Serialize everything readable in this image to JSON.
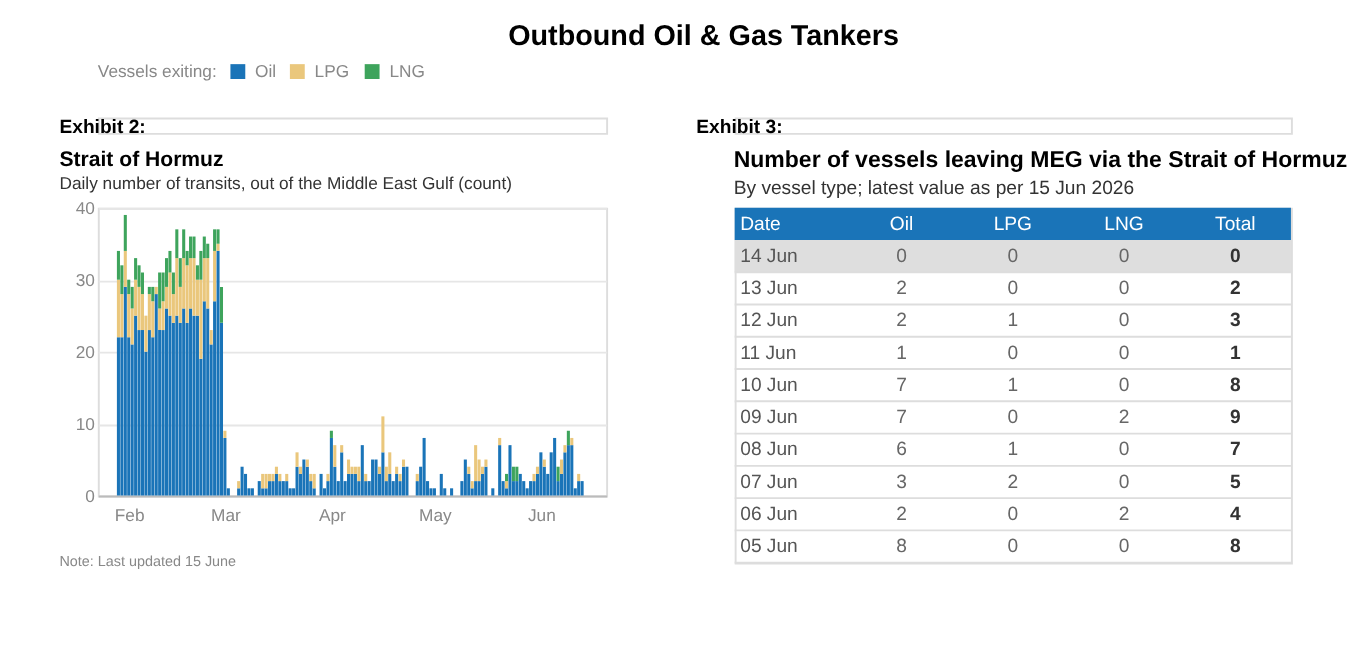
{
  "chart_data": [
    {
      "type": "bar",
      "title": "Strait of Hormuz",
      "subtitle": "Daily number of transits, out of the Middle East Gulf (count)",
      "legend_title": "Vessels exiting:",
      "legend": "top left",
      "stacked": true,
      "grid": "y",
      "annotations": [
        "Outbound Oil & Gas Tankers",
        "Exhibit 2:",
        "Note: Last updated 15 June"
      ],
      "xlim": [
        "2026-01-23",
        "2026-06-20"
      ],
      "xticks": [
        {
          "value": "2026-02-01",
          "label": "Feb"
        },
        {
          "value": "2026-03-01",
          "label": "Mar"
        },
        {
          "value": "2026-04-01",
          "label": "Apr"
        },
        {
          "value": "2026-05-01",
          "label": "May"
        },
        {
          "value": "2026-06-01",
          "label": "Jun"
        }
      ],
      "ylim": [
        0,
        40
      ],
      "yticks": [
        0,
        10,
        20,
        30,
        40
      ],
      "x": [
        "2026-01-29",
        "2026-01-30",
        "2026-01-31",
        "2026-02-01",
        "2026-02-02",
        "2026-02-03",
        "2026-02-04",
        "2026-02-05",
        "2026-02-06",
        "2026-02-07",
        "2026-02-08",
        "2026-02-09",
        "2026-02-10",
        "2026-02-11",
        "2026-02-12",
        "2026-02-13",
        "2026-02-14",
        "2026-02-15",
        "2026-02-16",
        "2026-02-17",
        "2026-02-18",
        "2026-02-19",
        "2026-02-20",
        "2026-02-21",
        "2026-02-22",
        "2026-02-23",
        "2026-02-24",
        "2026-02-25",
        "2026-02-26",
        "2026-02-27",
        "2026-02-28",
        "2026-03-01",
        "2026-03-02",
        "2026-03-03",
        "2026-03-04",
        "2026-03-05",
        "2026-03-06",
        "2026-03-07",
        "2026-03-08",
        "2026-03-09",
        "2026-03-10",
        "2026-03-11",
        "2026-03-12",
        "2026-03-13",
        "2026-03-14",
        "2026-03-15",
        "2026-03-16",
        "2026-03-17",
        "2026-03-18",
        "2026-03-19",
        "2026-03-20",
        "2026-03-21",
        "2026-03-22",
        "2026-03-23",
        "2026-03-24",
        "2026-03-25",
        "2026-03-26",
        "2026-03-27",
        "2026-03-28",
        "2026-03-29",
        "2026-03-30",
        "2026-03-31",
        "2026-04-01",
        "2026-04-02",
        "2026-04-03",
        "2026-04-04",
        "2026-04-05",
        "2026-04-06",
        "2026-04-07",
        "2026-04-08",
        "2026-04-09",
        "2026-04-10",
        "2026-04-11",
        "2026-04-12",
        "2026-04-13",
        "2026-04-14",
        "2026-04-15",
        "2026-04-16",
        "2026-04-17",
        "2026-04-18",
        "2026-04-19",
        "2026-04-20",
        "2026-04-21",
        "2026-04-22",
        "2026-04-23",
        "2026-04-24",
        "2026-04-25",
        "2026-04-26",
        "2026-04-27",
        "2026-04-28",
        "2026-04-29",
        "2026-04-30",
        "2026-05-01",
        "2026-05-02",
        "2026-05-03",
        "2026-05-04",
        "2026-05-05",
        "2026-05-06",
        "2026-05-07",
        "2026-05-08",
        "2026-05-09",
        "2026-05-10",
        "2026-05-11",
        "2026-05-12",
        "2026-05-13",
        "2026-05-14",
        "2026-05-15",
        "2026-05-16",
        "2026-05-17",
        "2026-05-18",
        "2026-05-19",
        "2026-05-20",
        "2026-05-21",
        "2026-05-22",
        "2026-05-23",
        "2026-05-24",
        "2026-05-25",
        "2026-05-26",
        "2026-05-27",
        "2026-05-28",
        "2026-05-29",
        "2026-05-30",
        "2026-05-31",
        "2026-06-01",
        "2026-06-02",
        "2026-06-03",
        "2026-06-04",
        "2026-06-05",
        "2026-06-06",
        "2026-06-07",
        "2026-06-08",
        "2026-06-09",
        "2026-06-10",
        "2026-06-11",
        "2026-06-12",
        "2026-06-13"
      ],
      "series": [
        {
          "name": "Oil",
          "color": "#1a74b8",
          "values": [
            22,
            22,
            29,
            22,
            21,
            25,
            23,
            23,
            20,
            23,
            22,
            28,
            23,
            23,
            26,
            25,
            24,
            25,
            24,
            26,
            24,
            26,
            25,
            25,
            19,
            27,
            26,
            21,
            27,
            34,
            24,
            8,
            1,
            null,
            null,
            1,
            4,
            3,
            1,
            1,
            null,
            2,
            1,
            1,
            2,
            2,
            3,
            2,
            2,
            2,
            1,
            1,
            4,
            3,
            5,
            4,
            2,
            1,
            null,
            3,
            1,
            2,
            8,
            4,
            2,
            6,
            2,
            3,
            3,
            3,
            2,
            7,
            2,
            2,
            5,
            5,
            3,
            6,
            2,
            3,
            2,
            3,
            2,
            4,
            4,
            null,
            null,
            2,
            4,
            8,
            2,
            1,
            1,
            null,
            3,
            1,
            null,
            1,
            null,
            null,
            2,
            5,
            3,
            1,
            2,
            2,
            3,
            4,
            null,
            1,
            null,
            7,
            2,
            1,
            7,
            2,
            2,
            3,
            2,
            1,
            2,
            2,
            3,
            6,
            4,
            3,
            6,
            8,
            2,
            3,
            6,
            7,
            7,
            1,
            2,
            2
          ]
        },
        {
          "name": "LPG",
          "color": "#eac77c",
          "values": [
            8,
            6,
            5,
            6,
            5,
            5,
            6,
            5,
            5,
            5,
            5,
            1,
            3,
            4,
            3,
            6,
            4,
            8,
            5,
            7,
            8,
            7,
            8,
            5,
            11,
            6,
            7,
            2,
            7,
            1,
            0,
            1,
            0,
            null,
            null,
            1,
            0,
            0,
            0,
            0,
            null,
            0,
            2,
            2,
            1,
            1,
            1,
            1,
            0,
            1,
            0,
            0,
            2,
            1,
            0,
            1,
            1,
            2,
            null,
            0,
            0,
            1,
            0,
            3,
            0,
            1,
            0,
            2,
            1,
            1,
            2,
            0,
            1,
            0,
            0,
            0,
            1,
            5,
            2,
            3,
            0,
            1,
            1,
            1,
            0,
            null,
            null,
            1,
            0,
            0,
            0,
            0,
            0,
            null,
            0,
            0,
            null,
            0,
            null,
            null,
            0,
            0,
            1,
            1,
            5,
            3,
            1,
            1,
            null,
            0,
            null,
            1,
            0,
            1,
            0,
            0,
            0,
            0,
            0,
            0,
            0,
            1,
            1,
            0,
            1,
            0,
            0,
            0,
            0,
            2,
            1,
            0,
            1,
            0,
            1,
            0
          ]
        },
        {
          "name": "LNG",
          "color": "#3ea45c",
          "values": [
            4,
            4,
            5,
            2,
            3,
            3,
            3,
            3,
            0,
            1,
            2,
            0,
            5,
            4,
            4,
            3,
            3,
            4,
            4,
            4,
            2,
            3,
            3,
            2,
            4,
            3,
            2,
            0,
            3,
            2,
            5,
            0,
            0,
            null,
            null,
            0,
            0,
            0,
            0,
            0,
            null,
            0,
            0,
            0,
            0,
            0,
            0,
            0,
            0,
            0,
            0,
            0,
            0,
            0,
            0,
            0,
            0,
            0,
            null,
            0,
            0,
            0,
            1,
            0,
            0,
            0,
            0,
            0,
            0,
            0,
            0,
            0,
            0,
            0,
            0,
            0,
            0,
            0,
            0,
            0,
            0,
            0,
            0,
            0,
            0,
            null,
            null,
            0,
            0,
            0,
            0,
            0,
            0,
            null,
            0,
            0,
            null,
            0,
            null,
            null,
            0,
            0,
            0,
            0,
            0,
            0,
            0,
            0,
            null,
            0,
            null,
            0,
            0,
            1,
            0,
            2,
            2,
            0,
            0,
            0,
            0,
            0,
            0,
            0,
            0,
            0,
            0,
            0,
            2,
            0,
            0,
            2,
            0,
            0,
            0,
            0
          ]
        }
      ]
    },
    {
      "type": "other",
      "title": "Number of vessels leaving MEG via the Strait of Hormuz",
      "subtitle": "By vessel type; latest value as per 15 Jun 2026",
      "xlabel": "Date",
      "data_labels": true,
      "annotations": [
        "Exhibit 3:"
      ],
      "categories": [
        "14 Jun",
        "13 Jun",
        "12 Jun",
        "11 Jun",
        "10 Jun",
        "09 Jun",
        "08 Jun",
        "07 Jun",
        "06 Jun",
        "05 Jun"
      ],
      "series": [
        {
          "name": "Oil",
          "values": [
            0,
            2,
            2,
            1,
            7,
            7,
            6,
            3,
            2,
            8
          ]
        },
        {
          "name": "LPG",
          "values": [
            0,
            0,
            1,
            0,
            1,
            0,
            1,
            2,
            0,
            0
          ]
        },
        {
          "name": "LNG",
          "values": [
            0,
            0,
            0,
            0,
            0,
            2,
            0,
            0,
            2,
            0
          ]
        },
        {
          "name": "Total",
          "values": [
            0,
            2,
            3,
            1,
            8,
            9,
            7,
            5,
            4,
            8
          ]
        }
      ]
    }
  ]
}
